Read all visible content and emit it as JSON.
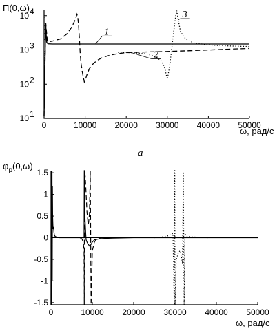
{
  "chart_data": [
    {
      "type": "line",
      "panel_caption": "a",
      "ylabel": "П(0,ω)",
      "xlabel": "ω, рад/с",
      "y_scale": "log",
      "xlim": [
        0,
        50000
      ],
      "ylim": [
        10,
        15000
      ],
      "x_ticks": [
        "0",
        "10000",
        "20000",
        "30000",
        "40000",
        "50000"
      ],
      "y_ticks": [
        {
          "label": "10",
          "exp": "1",
          "value": 10
        },
        {
          "label": "10",
          "exp": "2",
          "value": 100
        },
        {
          "label": "10",
          "exp": "3",
          "value": 1000
        },
        {
          "label": "10",
          "exp": "4",
          "value": 10000
        }
      ],
      "series": [
        {
          "name": "1",
          "style": "solid",
          "x": [
            0,
            200,
            400,
            600,
            800,
            1000,
            2000,
            5000,
            10000,
            20000,
            30000,
            40000,
            50000
          ],
          "y": [
            12,
            300,
            6000,
            1700,
            1550,
            1500,
            1480,
            1480,
            1480,
            1480,
            1480,
            1480,
            1480
          ]
        },
        {
          "name": "2",
          "style": "dashed",
          "x": [
            0,
            200,
            400,
            800,
            2000,
            4000,
            5500,
            6500,
            7200,
            7700,
            8000,
            8200,
            8400,
            8600,
            8800,
            9000,
            9300,
            9600,
            9800,
            10000,
            10500,
            11000,
            12000,
            13000,
            14000,
            15000,
            16000,
            18000,
            20000,
            25000,
            30000,
            35000,
            40000,
            45000,
            50000
          ],
          "y": [
            12,
            300,
            6000,
            1700,
            1800,
            2100,
            2900,
            4200,
            6000,
            8500,
            11000,
            9000,
            5000,
            2000,
            800,
            400,
            230,
            150,
            115,
            130,
            200,
            280,
            400,
            500,
            580,
            640,
            700,
            780,
            830,
            870,
            900,
            940,
            990,
            1050,
            1100
          ]
        },
        {
          "name": "3",
          "style": "dotted",
          "x": [
            18000,
            22000,
            25000,
            27000,
            28500,
            29300,
            29700,
            30000,
            30500,
            31000,
            31500,
            32000,
            32300,
            32700,
            33200,
            34000,
            35000,
            36500,
            38000,
            40000,
            42000,
            45000,
            50000
          ],
          "y": [
            850,
            820,
            760,
            650,
            480,
            320,
            200,
            140,
            300,
            900,
            3000,
            9000,
            14000,
            7000,
            3500,
            2400,
            1900,
            1600,
            1500,
            1400,
            1350,
            1300,
            1250
          ]
        }
      ],
      "curve_labels": [
        {
          "text": "1",
          "series": "1"
        },
        {
          "text": "2",
          "series": "2"
        },
        {
          "text": "3",
          "series": "3"
        }
      ]
    },
    {
      "type": "line",
      "ylabel": "φ",
      "ylabel_sub": "p",
      "ylabel_rest": "(0,ω)",
      "xlabel": "ω, рад/с",
      "xlim": [
        0,
        50000
      ],
      "ylim": [
        -1.55,
        1.55
      ],
      "x_ticks": [
        "0",
        "10000",
        "20000",
        "30000",
        "40000",
        "50000"
      ],
      "y_ticks": [
        "-1.5",
        "-1",
        "-0.5",
        "0",
        "0.5",
        "1",
        "1.5"
      ],
      "y_tick_values": [
        -1.5,
        -1,
        -0.5,
        0,
        0.5,
        1,
        1.5
      ],
      "series": [
        {
          "name": "1",
          "style": "solid",
          "x": [
            0,
            50,
            100,
            150,
            200,
            250,
            300,
            350,
            400,
            500,
            600,
            700,
            800,
            1000,
            1500,
            2000,
            3000,
            5000,
            8000,
            8050,
            8100,
            8200,
            8300,
            8400,
            8500,
            8700,
            9000,
            9400,
            9700,
            10000,
            10500,
            12000,
            15000,
            20000,
            30000,
            40000,
            50000
          ],
          "y": [
            -1.55,
            1.55,
            -1.55,
            1.55,
            -1.4,
            1.55,
            -1.0,
            1.2,
            0.5,
            0.2,
            0.25,
            0.15,
            0.07,
            0.03,
            0.01,
            0.0,
            0.0,
            0.0,
            0.0,
            1.55,
            1.55,
            0.5,
            0.3,
            0.1,
            -0.05,
            -0.1,
            -0.15,
            -0.2,
            -0.15,
            -0.1,
            -0.05,
            -0.02,
            -0.01,
            0.0,
            0.0,
            0.0,
            0.0
          ]
        },
        {
          "name": "2",
          "style": "dashed",
          "x": [
            7000,
            7500,
            7800,
            8000,
            8050,
            8100,
            8300,
            8500,
            8700,
            8900,
            9000,
            9100,
            9200,
            9300,
            9500,
            9700,
            10000,
            10500,
            11000,
            12000
          ],
          "y": [
            0.0,
            -0.03,
            -0.1,
            -0.3,
            -1.55,
            1.55,
            1.4,
            1.0,
            0.6,
            0.4,
            0.3,
            0.35,
            0.45,
            0.55,
            1.55,
            -1.55,
            -0.3,
            -0.1,
            -0.04,
            0.0
          ]
        },
        {
          "name": "3",
          "style": "dotted",
          "x": [
            25000,
            27000,
            28500,
            29500,
            29800,
            29900,
            29950,
            30000,
            30300,
            30800,
            31200,
            31500,
            31800,
            32000,
            32200,
            32400,
            32600,
            33000,
            34000,
            36000,
            38000
          ],
          "y": [
            0.0,
            0.02,
            0.05,
            0.1,
            -1.55,
            1.55,
            1.55,
            -1.55,
            -0.5,
            -0.35,
            -0.3,
            -0.4,
            -0.6,
            1.55,
            -1.55,
            0.1,
            0.05,
            0.03,
            0.02,
            0.01,
            0.0
          ]
        }
      ]
    }
  ]
}
